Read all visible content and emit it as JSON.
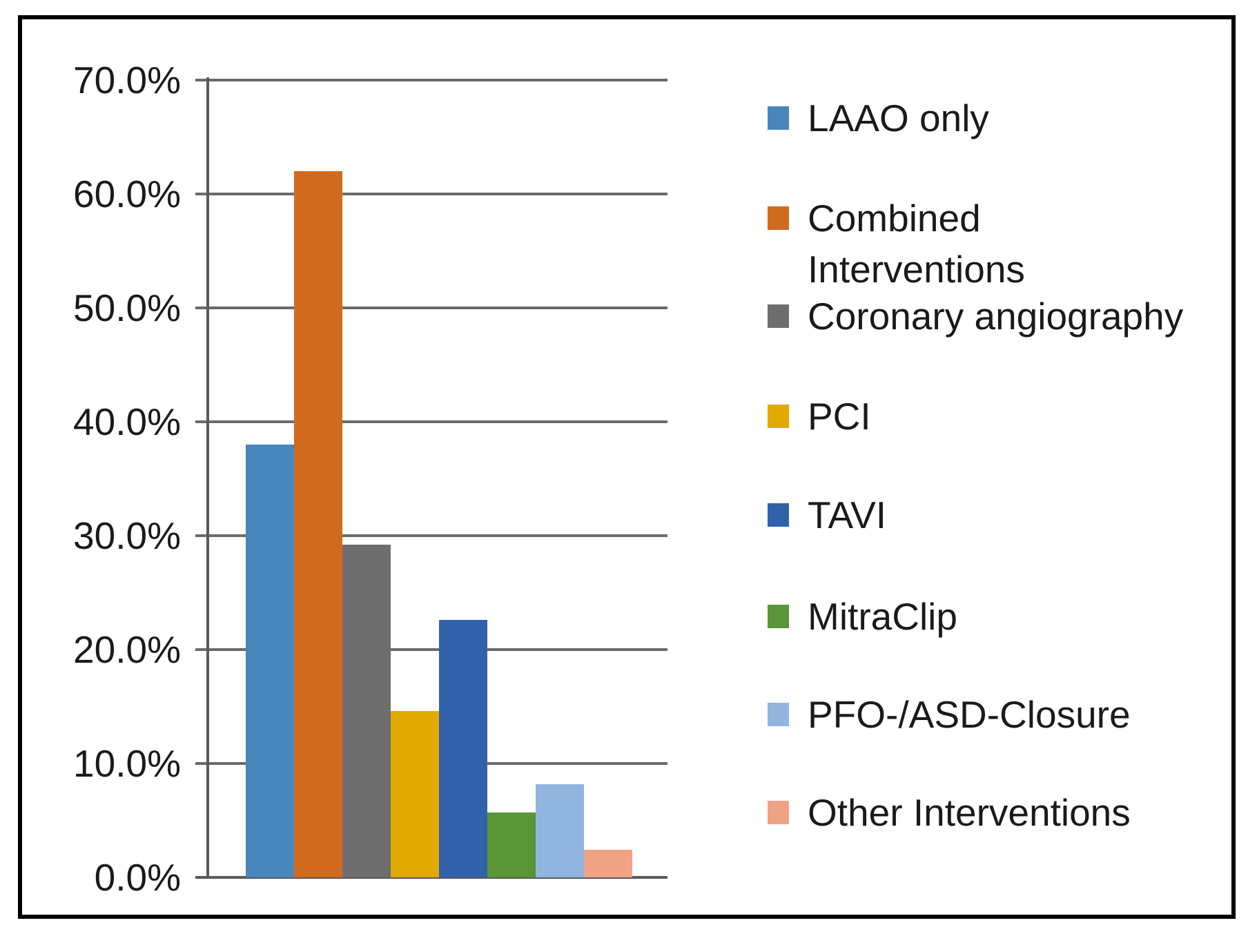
{
  "chart_data": {
    "type": "bar",
    "title": "",
    "xlabel": "",
    "ylabel": "",
    "categories": [
      "LAAO only",
      "Combined Interventions",
      "Coronary angiography",
      "PCI",
      "TAVI",
      "MitraClip",
      "PFO-/ASD-Closure",
      "Other Interventions"
    ],
    "values": [
      38.0,
      62.0,
      29.2,
      14.6,
      22.6,
      5.7,
      8.2,
      2.4
    ],
    "unit": "%",
    "bar_colors": [
      "#4A86BE",
      "#D06B1E",
      "#6E6E6E",
      "#E2A900",
      "#3261AB",
      "#5A9537",
      "#92B5E0",
      "#F0A284"
    ],
    "ylim": [
      0,
      70
    ],
    "ytick_step": 10,
    "ytick_labels": [
      "0.0%",
      "10.0%",
      "20.0%",
      "30.0%",
      "40.0%",
      "50.0%",
      "60.0%",
      "70.0%"
    ],
    "grid": true,
    "legend_position": "right",
    "legend": [
      {
        "label": "LAAO only",
        "color": "#4A86BE"
      },
      {
        "label": "Combined Interventions",
        "color": "#D06B1E"
      },
      {
        "label": "Coronary angiography",
        "color": "#6E6E6E"
      },
      {
        "label": "PCI",
        "color": "#E2A900"
      },
      {
        "label": "TAVI",
        "color": "#3261AB"
      },
      {
        "label": "MitraClip",
        "color": "#5A9537"
      },
      {
        "label": "PFO-/ASD-Closure",
        "color": "#92B5E0"
      },
      {
        "label": "Other Interventions",
        "color": "#F0A284"
      }
    ]
  },
  "styles": {
    "grid_color": "#6A6A6A",
    "axis_color": "#595959",
    "text_color": "#1A1A1A",
    "frame_border_color": "#000000",
    "background": "#FFFFFF"
  }
}
